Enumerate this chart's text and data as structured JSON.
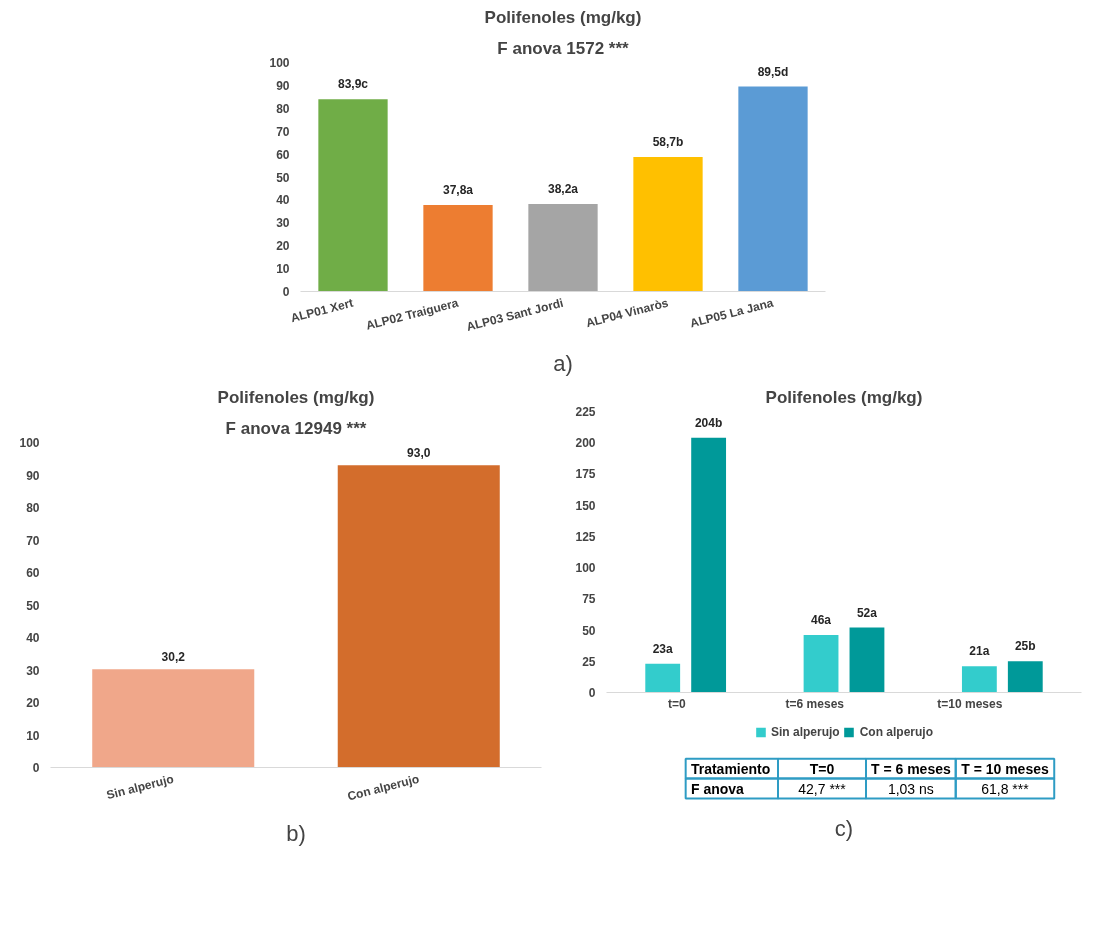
{
  "chart_data": [
    {
      "type": "bar",
      "title": "Polifenoles (mg/kg)",
      "subtitle": "F anova 1572 ***",
      "categories": [
        "ALP01 Xert",
        "ALP02 Traiguera",
        "ALP03 Sant Jordi",
        "ALP04 Vinaròs",
        "ALP05 La Jana"
      ],
      "values": [
        83.9,
        37.8,
        38.2,
        58.7,
        89.5
      ],
      "colors": [
        "#70ad47",
        "#ed7d31",
        "#a5a5a5",
        "#ffc000",
        "#5b9bd5"
      ],
      "value_labels": [
        "83,9c",
        "37,8a",
        "38,2a",
        "58,7b",
        "89,5d"
      ],
      "ylim": [
        0,
        100
      ],
      "yticks": [
        0,
        10,
        20,
        30,
        40,
        50,
        60,
        70,
        80,
        90,
        100
      ],
      "grid": false,
      "annotations": [
        "a)"
      ]
    },
    {
      "type": "bar",
      "title": "Polifenoles (mg/kg)",
      "subtitle": "F anova 12949 ***",
      "categories": [
        "Sin alperujo",
        "Con alperujo"
      ],
      "values": [
        30.2,
        93.0
      ],
      "colors": [
        "#f0a78a",
        "#d36d2c"
      ],
      "value_labels": [
        "30,2",
        "93,0"
      ],
      "ylim": [
        0,
        100
      ],
      "yticks": [
        0,
        10,
        20,
        30,
        40,
        50,
        60,
        70,
        80,
        90,
        100
      ],
      "grid": false,
      "annotations": [
        "b)"
      ]
    },
    {
      "type": "bar",
      "title": "Polifenoles (mg/kg)",
      "categories": [
        "t=0",
        "t=6 meses",
        "t=10 meses"
      ],
      "series": [
        {
          "name": "Sin alperujo",
          "color": "#33cccc",
          "values": [
            23,
            46,
            21
          ],
          "value_labels": [
            "23a",
            "46a",
            "21a"
          ]
        },
        {
          "name": "Con alperujo",
          "color": "#009999",
          "values": [
            204,
            52,
            25
          ],
          "value_labels": [
            "204b",
            "52a",
            "25b"
          ]
        }
      ],
      "ylim": [
        0,
        225
      ],
      "yticks": [
        0,
        25,
        50,
        75,
        100,
        125,
        150,
        175,
        200,
        225
      ],
      "grid": false,
      "legend": "bottom",
      "annotations": [
        "Tratamiento",
        "T=0",
        "T = 6 meses",
        "T = 10 meses",
        "F anova",
        "42,7 ***",
        "1,03 ns",
        "61,8 ***",
        "c)"
      ]
    }
  ]
}
